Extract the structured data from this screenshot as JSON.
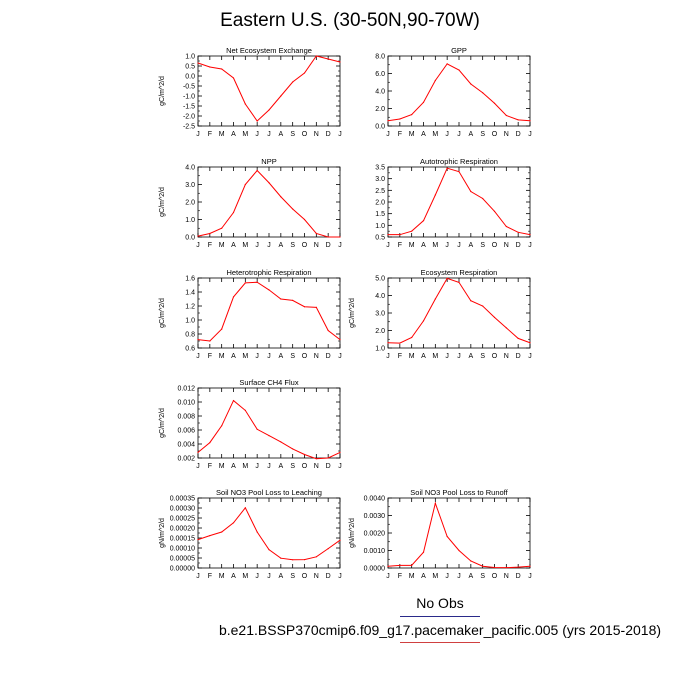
{
  "page": {
    "title": "Eastern U.S. (30-50N,90-70W)",
    "legend_label": "No Obs",
    "case_label": "b.e21.BSSP370cmip6.f09_g17.pacemaker_pacific.005 (yrs 2015-2018)"
  },
  "colors": {
    "line": "#ff0000",
    "legend_line": "#2a2a8a",
    "case_line": "#d04040"
  },
  "chart_data": [
    {
      "type": "line",
      "title": "Net Ecosystem Exchange",
      "ylabel": "gC/m^2/d",
      "x": [
        "J",
        "F",
        "M",
        "A",
        "M",
        "J",
        "J",
        "A",
        "S",
        "O",
        "N",
        "D",
        "J"
      ],
      "values": [
        0.65,
        0.45,
        0.35,
        -0.1,
        -1.4,
        -2.25,
        -1.7,
        -1.0,
        -0.3,
        0.15,
        1.0,
        0.85,
        0.7
      ],
      "ylim": [
        -2.5,
        1.0
      ],
      "yticks": [
        "1.0",
        "0.5",
        "0.0",
        "-0.5",
        "-1.0",
        "-1.5",
        "-2.0",
        "-2.5"
      ]
    },
    {
      "type": "line",
      "title": "GPP",
      "ylabel": "",
      "x": [
        "J",
        "F",
        "M",
        "A",
        "M",
        "J",
        "J",
        "A",
        "S",
        "O",
        "N",
        "D",
        "J"
      ],
      "values": [
        0.6,
        0.8,
        1.3,
        2.7,
        5.2,
        7.1,
        6.4,
        4.8,
        3.8,
        2.6,
        1.2,
        0.7,
        0.6
      ],
      "ylim": [
        0,
        8
      ],
      "yticks": [
        "8.0",
        "6.0",
        "4.0",
        "2.0",
        "0.0"
      ]
    },
    {
      "type": "line",
      "title": "NPP",
      "ylabel": "gC/m^2/d",
      "x": [
        "J",
        "F",
        "M",
        "A",
        "M",
        "J",
        "J",
        "A",
        "S",
        "O",
        "N",
        "D",
        "J"
      ],
      "values": [
        0.05,
        0.2,
        0.5,
        1.4,
        3.0,
        3.8,
        3.1,
        2.3,
        1.6,
        1.0,
        0.2,
        0.0,
        0.0
      ],
      "ylim": [
        0,
        4
      ],
      "yticks": [
        "4.0",
        "3.0",
        "2.0",
        "1.0",
        "0.0"
      ]
    },
    {
      "type": "line",
      "title": "Autotrophic Respiration",
      "ylabel": "",
      "x": [
        "J",
        "F",
        "M",
        "A",
        "M",
        "J",
        "J",
        "A",
        "S",
        "O",
        "N",
        "D",
        "J"
      ],
      "values": [
        0.6,
        0.6,
        0.75,
        1.2,
        2.3,
        3.45,
        3.3,
        2.45,
        2.15,
        1.6,
        0.95,
        0.7,
        0.6
      ],
      "ylim": [
        0.5,
        3.5
      ],
      "yticks": [
        "3.5",
        "3.0",
        "2.5",
        "2.0",
        "1.5",
        "1.0",
        "0.5"
      ]
    },
    {
      "type": "line",
      "title": "Heterotrophic Respiration",
      "ylabel": "gC/m^2/d",
      "x": [
        "J",
        "F",
        "M",
        "A",
        "M",
        "J",
        "J",
        "A",
        "S",
        "O",
        "N",
        "D",
        "J"
      ],
      "values": [
        0.72,
        0.7,
        0.87,
        1.33,
        1.53,
        1.54,
        1.43,
        1.3,
        1.28,
        1.19,
        1.18,
        0.85,
        0.72
      ],
      "ylim": [
        0.6,
        1.6
      ],
      "yticks": [
        "1.6",
        "1.4",
        "1.2",
        "1.0",
        "0.8",
        "0.6"
      ]
    },
    {
      "type": "line",
      "title": "Ecosystem Respiration",
      "ylabel": "gC/m^2/d",
      "x": [
        "J",
        "F",
        "M",
        "A",
        "M",
        "J",
        "J",
        "A",
        "S",
        "O",
        "N",
        "D",
        "J"
      ],
      "values": [
        1.3,
        1.28,
        1.6,
        2.55,
        3.8,
        4.98,
        4.75,
        3.7,
        3.4,
        2.75,
        2.15,
        1.55,
        1.3
      ],
      "ylim": [
        1,
        5
      ],
      "yticks": [
        "5.0",
        "4.0",
        "3.0",
        "2.0",
        "1.0"
      ]
    },
    {
      "type": "line",
      "title": "Surface CH4 Flux",
      "ylabel": "gC/m^2/d",
      "x": [
        "J",
        "F",
        "M",
        "A",
        "M",
        "J",
        "J",
        "A",
        "S",
        "O",
        "N",
        "D",
        "J"
      ],
      "values": [
        0.0028,
        0.0042,
        0.0066,
        0.0102,
        0.0088,
        0.0061,
        0.0052,
        0.0043,
        0.0033,
        0.0025,
        0.0019,
        0.002,
        0.0028
      ],
      "ylim": [
        0.002,
        0.012
      ],
      "yticks": [
        "0.012",
        "0.010",
        "0.008",
        "0.006",
        "0.004",
        "0.002"
      ]
    },
    {
      "type": "line",
      "title": "Soil NO3 Pool Loss to Leaching",
      "ylabel": "gN/m^2/d",
      "x": [
        "J",
        "F",
        "M",
        "A",
        "M",
        "J",
        "J",
        "A",
        "S",
        "O",
        "N",
        "D",
        "J"
      ],
      "values": [
        0.000142,
        0.000162,
        0.00018,
        0.000226,
        0.000301,
        0.00018,
        9.2e-05,
        4.9e-05,
        4.1e-05,
        4.2e-05,
        5.6e-05,
        9.7e-05,
        0.000139
      ],
      "ylim": [
        0,
        0.00035
      ],
      "yticks": [
        "0.00035",
        "0.00030",
        "0.00025",
        "0.00020",
        "0.00015",
        "0.00010",
        "0.00005",
        "0.00000"
      ]
    },
    {
      "type": "line",
      "title": "Soil NO3 Pool Loss to Runoff",
      "ylabel": "gN/m^2/d",
      "x": [
        "J",
        "F",
        "M",
        "A",
        "M",
        "J",
        "J",
        "A",
        "S",
        "O",
        "N",
        "D",
        "J"
      ],
      "values": [
        0.0001,
        0.00015,
        0.00015,
        0.0009,
        0.0037,
        0.0018,
        0.001,
        0.0004,
        0.0001,
        3e-05,
        2e-05,
        5e-05,
        0.0001
      ],
      "ylim": [
        0,
        0.004
      ],
      "yticks": [
        "0.0040",
        "0.0030",
        "0.0020",
        "0.0010",
        "0.0000"
      ]
    }
  ]
}
